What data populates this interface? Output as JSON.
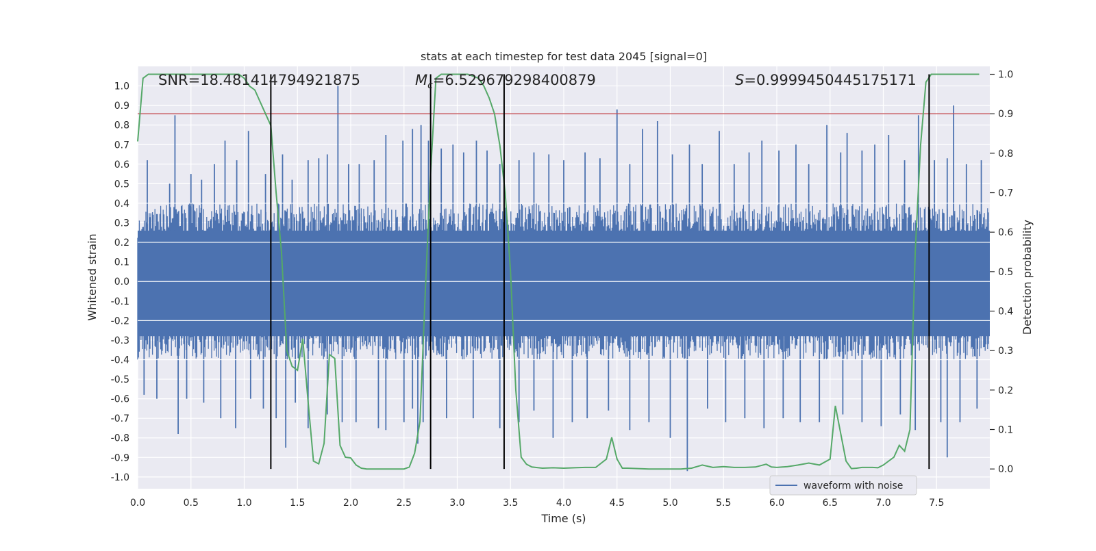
{
  "chart_data": {
    "type": "line",
    "title": "stats at each timestep for test data 2045 [signal=0]",
    "xlabel": "Time (s)",
    "ylabel": "Whitened strain",
    "ylabel_right": "Detection probability",
    "xlim": [
      0.0,
      8.0
    ],
    "ylim": [
      -1.06,
      1.1
    ],
    "ylim_right": [
      -0.05,
      1.02
    ],
    "x_ticks": [
      "0.0",
      "0.5",
      "1.0",
      "1.5",
      "2.0",
      "2.5",
      "3.0",
      "3.5",
      "4.0",
      "4.5",
      "5.0",
      "5.5",
      "6.0",
      "6.5",
      "7.0",
      "7.5"
    ],
    "y_ticks": [
      "1.0",
      "0.9",
      "0.8",
      "0.7",
      "0.6",
      "0.5",
      "0.4",
      "0.3",
      "0.2",
      "0.1",
      "0.0",
      "-0.1",
      "-0.2",
      "-0.3",
      "-0.4",
      "-0.5",
      "-0.6",
      "-0.7",
      "-0.8",
      "-0.9",
      "-1.0"
    ],
    "y_ticks_right": [
      "1.0",
      "0.9",
      "0.8",
      "0.7",
      "0.6",
      "0.5",
      "0.4",
      "0.3",
      "0.2",
      "0.1",
      "0.0"
    ],
    "grid": true,
    "legend": {
      "placement": "bottom-right",
      "entries": [
        "waveform with noise"
      ]
    },
    "annotations": {
      "snr": "SNR=18.481414794921875",
      "mc_symbol": "M",
      "mc_sub": "c",
      "mc_value": "=6.529679298400879",
      "s_symbol": "S",
      "s_value": "=0.9999450445175171"
    },
    "threshold": {
      "value": 0.9,
      "axis": "right"
    },
    "vertical_markers": [
      1.25,
      2.75,
      3.44,
      7.43
    ],
    "waveform": {
      "name": "waveform with noise",
      "envelope_top": 0.4,
      "envelope_bottom": -0.4,
      "spikes_positive": [
        [
          0.09,
          0.62
        ],
        [
          0.3,
          0.5
        ],
        [
          0.35,
          0.85
        ],
        [
          0.5,
          0.55
        ],
        [
          0.6,
          0.52
        ],
        [
          0.72,
          0.6
        ],
        [
          0.82,
          0.72
        ],
        [
          0.93,
          0.62
        ],
        [
          1.04,
          0.77
        ],
        [
          1.2,
          0.55
        ],
        [
          1.36,
          0.65
        ],
        [
          1.45,
          0.52
        ],
        [
          1.6,
          0.62
        ],
        [
          1.7,
          0.63
        ],
        [
          1.78,
          0.65
        ],
        [
          1.88,
          1.0
        ],
        [
          1.98,
          0.6
        ],
        [
          2.08,
          0.6
        ],
        [
          2.22,
          0.62
        ],
        [
          2.33,
          0.75
        ],
        [
          2.49,
          0.72
        ],
        [
          2.58,
          0.78
        ],
        [
          2.66,
          0.8
        ],
        [
          2.73,
          0.72
        ],
        [
          2.85,
          0.68
        ],
        [
          2.96,
          0.7
        ],
        [
          3.06,
          0.66
        ],
        [
          3.18,
          0.72
        ],
        [
          3.28,
          0.67
        ],
        [
          3.4,
          0.6
        ],
        [
          3.58,
          0.62
        ],
        [
          3.72,
          0.66
        ],
        [
          3.86,
          0.65
        ],
        [
          4.0,
          0.62
        ],
        [
          4.2,
          0.66
        ],
        [
          4.34,
          0.63
        ],
        [
          4.5,
          0.88
        ],
        [
          4.62,
          0.6
        ],
        [
          4.74,
          0.78
        ],
        [
          4.88,
          0.82
        ],
        [
          5.02,
          0.65
        ],
        [
          5.18,
          0.7
        ],
        [
          5.3,
          0.6
        ],
        [
          5.46,
          0.77
        ],
        [
          5.6,
          0.6
        ],
        [
          5.74,
          0.66
        ],
        [
          5.86,
          0.72
        ],
        [
          6.02,
          0.67
        ],
        [
          6.18,
          0.7
        ],
        [
          6.3,
          0.6
        ],
        [
          6.47,
          0.8
        ],
        [
          6.6,
          0.66
        ],
        [
          6.66,
          0.76
        ],
        [
          6.8,
          0.67
        ],
        [
          6.92,
          0.7
        ],
        [
          7.05,
          0.75
        ],
        [
          7.2,
          0.62
        ],
        [
          7.33,
          0.85
        ],
        [
          7.48,
          0.62
        ],
        [
          7.6,
          0.63
        ],
        [
          7.66,
          0.9
        ],
        [
          7.78,
          0.6
        ],
        [
          7.92,
          0.62
        ]
      ],
      "spikes_negative": [
        [
          0.06,
          -0.58
        ],
        [
          0.18,
          -0.6
        ],
        [
          0.38,
          -0.78
        ],
        [
          0.46,
          -0.6
        ],
        [
          0.62,
          -0.62
        ],
        [
          0.78,
          -0.7
        ],
        [
          0.92,
          -0.75
        ],
        [
          1.06,
          -0.6
        ],
        [
          1.18,
          -0.65
        ],
        [
          1.3,
          -0.7
        ],
        [
          1.39,
          -0.85
        ],
        [
          1.48,
          -0.62
        ],
        [
          1.6,
          -0.75
        ],
        [
          1.78,
          -0.68
        ],
        [
          1.92,
          -0.72
        ],
        [
          2.05,
          -0.72
        ],
        [
          2.26,
          -0.75
        ],
        [
          2.33,
          -0.76
        ],
        [
          2.5,
          -0.72
        ],
        [
          2.58,
          -0.65
        ],
        [
          2.63,
          -0.83
        ],
        [
          2.68,
          -0.72
        ],
        [
          2.9,
          -0.7
        ],
        [
          3.15,
          -0.7
        ],
        [
          3.4,
          -0.75
        ],
        [
          3.58,
          -0.72
        ],
        [
          3.72,
          -0.66
        ],
        [
          3.9,
          -0.8
        ],
        [
          4.08,
          -0.72
        ],
        [
          4.22,
          -0.7
        ],
        [
          4.42,
          -0.66
        ],
        [
          4.62,
          -0.76
        ],
        [
          4.8,
          -0.72
        ],
        [
          5.0,
          -0.8
        ],
        [
          5.16,
          -0.97
        ],
        [
          5.35,
          -0.65
        ],
        [
          5.52,
          -0.72
        ],
        [
          5.7,
          -0.7
        ],
        [
          5.88,
          -0.75
        ],
        [
          6.06,
          -0.7
        ],
        [
          6.22,
          -0.72
        ],
        [
          6.4,
          -0.72
        ],
        [
          6.62,
          -0.68
        ],
        [
          6.8,
          -0.72
        ],
        [
          6.98,
          -0.74
        ],
        [
          7.16,
          -0.68
        ],
        [
          7.3,
          -0.76
        ],
        [
          7.54,
          -0.72
        ],
        [
          7.6,
          -0.9
        ],
        [
          7.72,
          -0.72
        ],
        [
          7.88,
          -0.65
        ]
      ]
    },
    "probability": {
      "x": [
        0.0,
        0.05,
        0.1,
        0.15,
        0.2,
        0.4,
        0.6,
        0.8,
        0.95,
        1.0,
        1.05,
        1.1,
        1.15,
        1.2,
        1.25,
        1.3,
        1.35,
        1.4,
        1.45,
        1.5,
        1.55,
        1.6,
        1.65,
        1.7,
        1.75,
        1.8,
        1.85,
        1.9,
        1.95,
        2.0,
        2.05,
        2.1,
        2.15,
        2.2,
        2.3,
        2.4,
        2.5,
        2.55,
        2.6,
        2.65,
        2.7,
        2.75,
        2.8,
        2.85,
        2.9,
        3.0,
        3.1,
        3.2,
        3.25,
        3.3,
        3.35,
        3.4,
        3.45,
        3.5,
        3.55,
        3.6,
        3.65,
        3.7,
        3.8,
        3.9,
        4.0,
        4.1,
        4.2,
        4.3,
        4.4,
        4.45,
        4.5,
        4.55,
        4.6,
        4.7,
        4.8,
        4.9,
        5.0,
        5.1,
        5.2,
        5.3,
        5.4,
        5.5,
        5.6,
        5.7,
        5.8,
        5.9,
        5.95,
        6.0,
        6.1,
        6.2,
        6.3,
        6.4,
        6.5,
        6.55,
        6.6,
        6.65,
        6.7,
        6.75,
        6.8,
        6.9,
        6.95,
        7.0,
        7.1,
        7.15,
        7.2,
        7.25,
        7.3,
        7.35,
        7.4,
        7.45,
        7.5,
        7.6,
        7.7,
        7.8,
        7.9
      ],
      "y": [
        0.83,
        0.99,
        1.0,
        1.0,
        1.0,
        1.0,
        1.0,
        1.0,
        1.0,
        0.99,
        0.97,
        0.96,
        0.93,
        0.9,
        0.87,
        0.7,
        0.55,
        0.3,
        0.26,
        0.25,
        0.33,
        0.17,
        0.02,
        0.013,
        0.065,
        0.29,
        0.28,
        0.06,
        0.03,
        0.028,
        0.01,
        0.002,
        0.0,
        0.0,
        0.0,
        0.0,
        0.0,
        0.005,
        0.04,
        0.12,
        0.45,
        0.75,
        0.99,
        1.0,
        1.0,
        1.0,
        1.0,
        0.99,
        0.97,
        0.94,
        0.9,
        0.82,
        0.7,
        0.5,
        0.2,
        0.03,
        0.012,
        0.005,
        0.002,
        0.003,
        0.002,
        0.003,
        0.004,
        0.004,
        0.025,
        0.08,
        0.025,
        0.002,
        0.002,
        0.001,
        0.0,
        0.0,
        0.0,
        0.0,
        0.002,
        0.01,
        0.004,
        0.006,
        0.004,
        0.004,
        0.005,
        0.012,
        0.005,
        0.004,
        0.006,
        0.01,
        0.015,
        0.01,
        0.025,
        0.16,
        0.09,
        0.02,
        0.001,
        0.002,
        0.004,
        0.004,
        0.003,
        0.01,
        0.03,
        0.06,
        0.045,
        0.1,
        0.55,
        0.82,
        0.98,
        1.0,
        1.0,
        1.0,
        1.0,
        1.0,
        1.0
      ]
    },
    "colors": {
      "background": "#eaeaf2",
      "grid": "#ffffff",
      "waveform": "#4c72b0",
      "probability": "#55a868",
      "threshold": "#c44e52",
      "markers": "#000000"
    }
  }
}
